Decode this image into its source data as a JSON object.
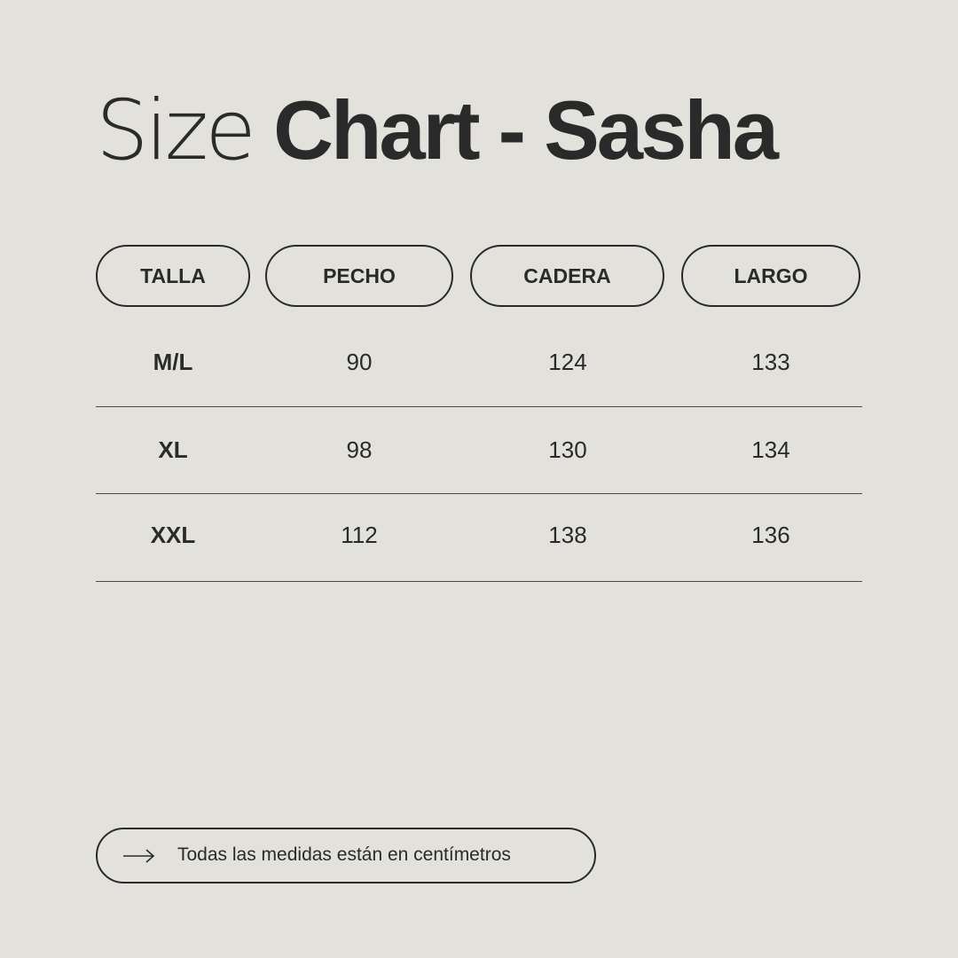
{
  "title": {
    "light": "Size",
    "bold": "Chart - Sasha"
  },
  "headers": [
    "TALLA",
    "PECHO",
    "CADERA",
    "LARGO"
  ],
  "rows": [
    [
      "M/L",
      "90",
      "124",
      "133"
    ],
    [
      "XL",
      "98",
      "130",
      "134"
    ],
    [
      "XXL",
      "112",
      "138",
      "136"
    ]
  ],
  "footer": {
    "icon": "arrow-right-icon",
    "text": "Todas las medidas están en centímetros"
  },
  "colors": {
    "background": "#e2e1dc",
    "text": "#2a2a2a"
  }
}
